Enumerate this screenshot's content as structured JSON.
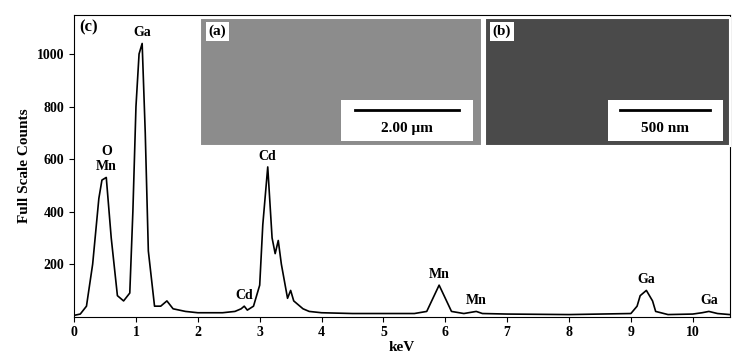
{
  "chart_data": {
    "type": "line",
    "panel_label": "(c)",
    "xlabel": "keV",
    "ylabel": "Full Scale Counts",
    "color": "#000000",
    "x": [
      0,
      0.1,
      0.2,
      0.3,
      0.4,
      0.45,
      0.52,
      0.6,
      0.7,
      0.8,
      0.9,
      0.95,
      1.0,
      1.05,
      1.1,
      1.15,
      1.2,
      1.3,
      1.4,
      1.5,
      1.6,
      1.8,
      2.0,
      2.2,
      2.4,
      2.6,
      2.7,
      2.75,
      2.8,
      2.9,
      3.0,
      3.05,
      3.13,
      3.2,
      3.25,
      3.3,
      3.35,
      3.45,
      3.5,
      3.55,
      3.7,
      3.8,
      4.0,
      4.5,
      5.0,
      5.5,
      5.7,
      5.8,
      5.9,
      6.0,
      6.1,
      6.3,
      6.45,
      6.5,
      6.6,
      7.0,
      8.0,
      9.0,
      9.1,
      9.15,
      9.25,
      9.35,
      9.4,
      9.6,
      10.0,
      10.15,
      10.26,
      10.4,
      10.6
    ],
    "values": [
      5,
      10,
      40,
      200,
      450,
      520,
      530,
      300,
      80,
      60,
      90,
      400,
      800,
      1000,
      1040,
      700,
      250,
      40,
      40,
      60,
      30,
      20,
      15,
      15,
      15,
      20,
      30,
      40,
      25,
      40,
      120,
      350,
      570,
      300,
      240,
      290,
      200,
      70,
      100,
      60,
      30,
      20,
      15,
      12,
      12,
      12,
      20,
      70,
      120,
      70,
      20,
      12,
      18,
      20,
      12,
      10,
      8,
      12,
      40,
      80,
      100,
      60,
      20,
      8,
      10,
      15,
      20,
      12,
      8
    ],
    "xlim": [
      0,
      10.6
    ],
    "ylim": [
      0,
      1150
    ],
    "xticks": [
      0,
      1,
      2,
      3,
      4,
      5,
      6,
      7,
      8,
      9,
      10
    ],
    "yticks": [
      200,
      400,
      600,
      800,
      1000
    ],
    "annotations": [
      {
        "text": "O",
        "x": 0.52
      },
      {
        "text": "Mn",
        "x": 0.52
      },
      {
        "text": "Ga",
        "x": 1.1
      },
      {
        "text": "Cd",
        "x": 2.75
      },
      {
        "text": "Cd",
        "x": 3.13
      },
      {
        "text": "Mn",
        "x": 5.9
      },
      {
        "text": "Mn",
        "x": 6.5
      },
      {
        "text": "Ga",
        "x": 9.25
      },
      {
        "text": "Ga",
        "x": 10.26
      }
    ],
    "insets": [
      {
        "label": "(a)",
        "scale_bar": "2.00 μm"
      },
      {
        "label": "(b)",
        "scale_bar": "500 nm"
      }
    ]
  }
}
